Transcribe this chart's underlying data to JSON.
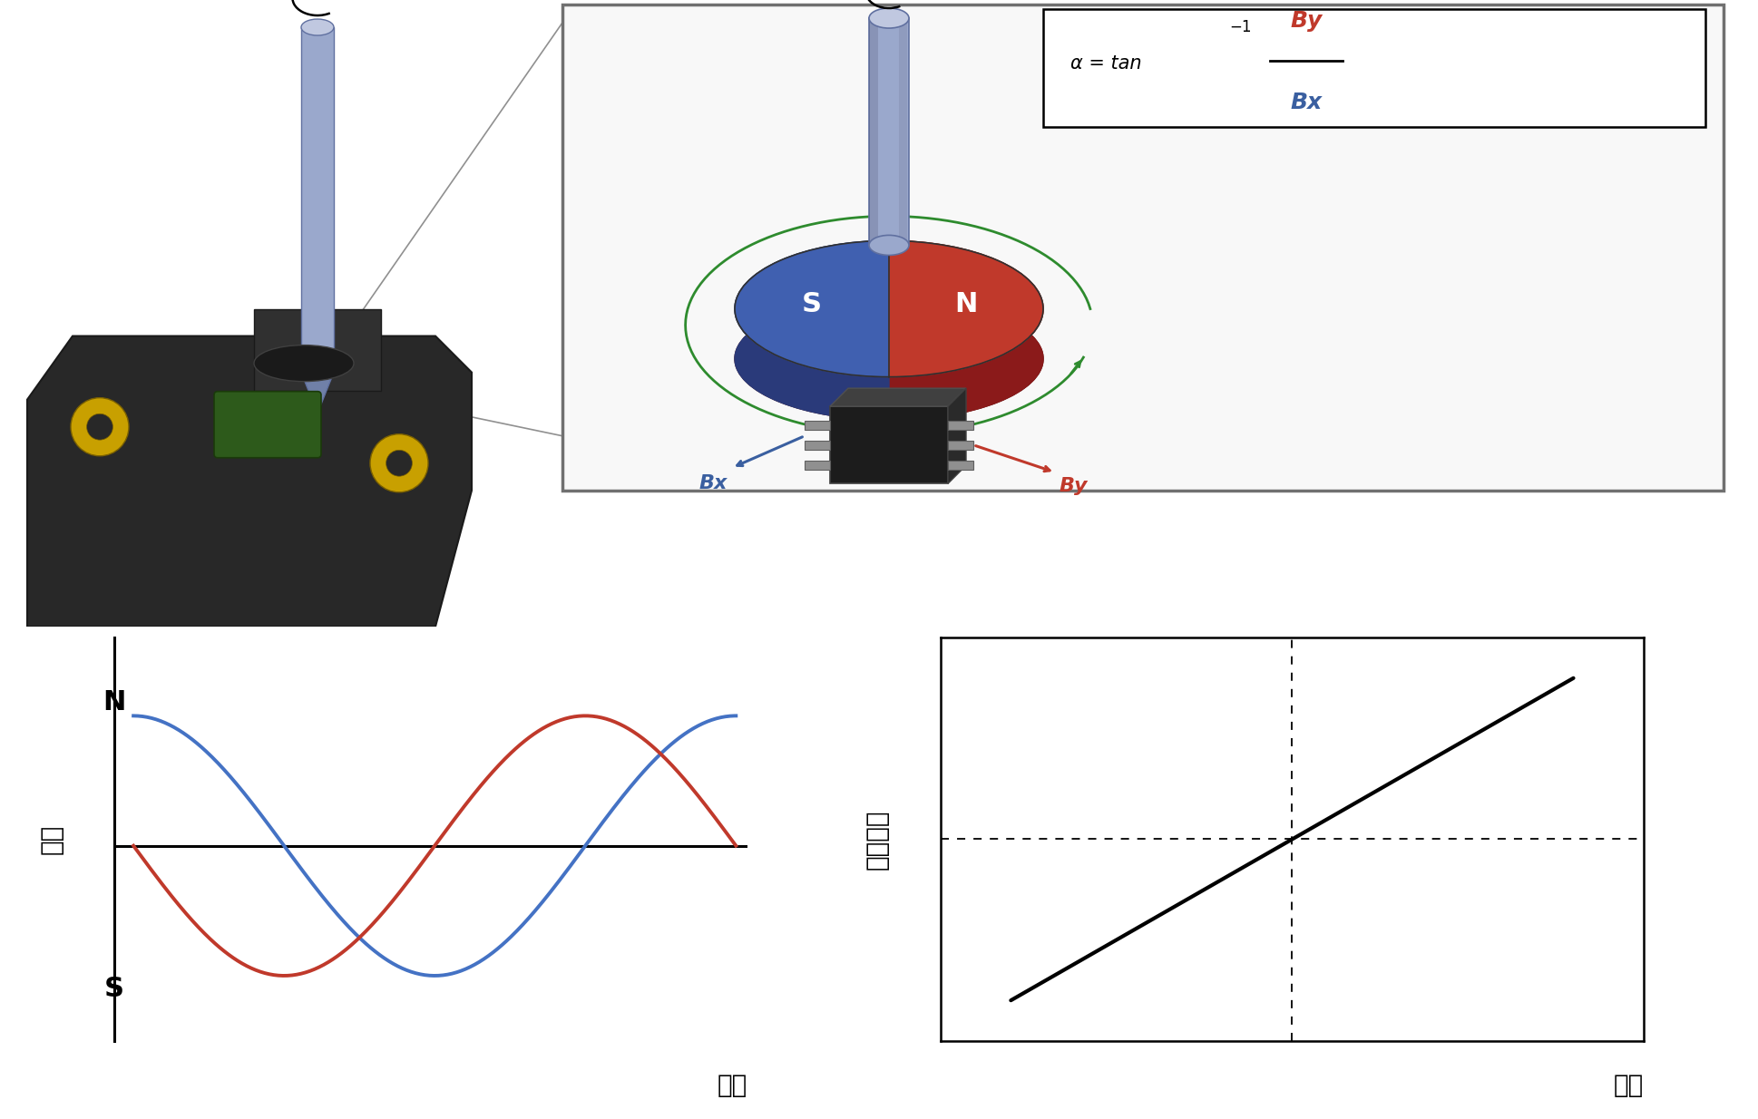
{
  "bg_color": "#ffffff",
  "sine_color_blue": "#4472c4",
  "sine_color_red": "#c0392b",
  "magnet_blue_light": "#5580c8",
  "magnet_blue_dark": "#2a4a90",
  "magnet_red_light": "#c0392b",
  "magnet_red_dark": "#8b1a1a",
  "rod_color": "#9aa4c8",
  "rod_edge": "#6070a0",
  "rod_top": "#c0c8e0",
  "green_arrow": "#2e8b2e",
  "chip_body": "#1a1a1a",
  "chip_pin": "#808080",
  "sensor_body": "#2a2a2a",
  "sensor_yellow": "#d4a000",
  "sensor_green": "#2d5a1b",
  "box_edge": "#707070",
  "ylabel_left": "磁力",
  "ylabel_right": "出力電圧",
  "xlabel": "角度",
  "label_alpha": "α",
  "sine_xlim": [
    -0.2,
    6.4
  ],
  "sine_ylim": [
    -1.5,
    1.6
  ],
  "font_size_label": 20,
  "font_size_NS": 22,
  "font_size_axis": 20
}
